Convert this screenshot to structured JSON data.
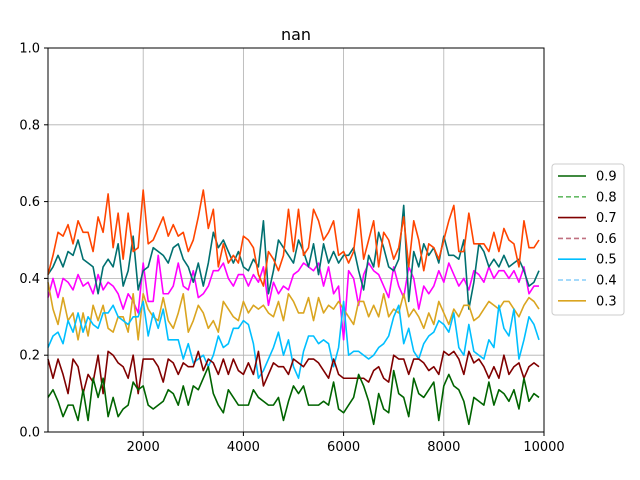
{
  "chart_data": {
    "type": "line",
    "title": "nan",
    "xlabel": "",
    "ylabel": "",
    "xlim": [
      100,
      10000
    ],
    "ylim": [
      0.0,
      1.0
    ],
    "x_ticks": [
      2000,
      4000,
      6000,
      8000,
      10000
    ],
    "x_tick_labels": [
      "2000",
      "4000",
      "6000",
      "8000",
      "10000"
    ],
    "y_ticks": [
      0.0,
      0.2,
      0.4,
      0.6,
      0.8,
      1.0
    ],
    "y_tick_labels": [
      "0.0",
      "0.2",
      "0.4",
      "0.6",
      "0.8",
      "1.0"
    ],
    "grid": true,
    "legend_placement": "center-right outside",
    "legend": [
      {
        "label": "0.9",
        "color": "#006400",
        "dashed": false
      },
      {
        "label": "0.8",
        "color": "#66bb66",
        "dashed": true
      },
      {
        "label": "0.7",
        "color": "#800000",
        "dashed": false
      },
      {
        "label": "0.6",
        "color": "#c07080",
        "dashed": true
      },
      {
        "label": "0.5",
        "color": "#00bfff",
        "dashed": false
      },
      {
        "label": "0.4",
        "color": "#87cefa",
        "dashed": true
      },
      {
        "label": "0.3",
        "color": "#daa520",
        "dashed": false
      }
    ],
    "x": [
      100,
      200,
      300,
      400,
      500,
      600,
      700,
      800,
      900,
      1000,
      1100,
      1200,
      1300,
      1400,
      1500,
      1600,
      1700,
      1800,
      1900,
      2000,
      2100,
      2200,
      2300,
      2400,
      2500,
      2600,
      2700,
      2800,
      2900,
      3000,
      3100,
      3200,
      3300,
      3400,
      3500,
      3600,
      3700,
      3800,
      3900,
      4000,
      4100,
      4200,
      4300,
      4400,
      4500,
      4600,
      4700,
      4800,
      4900,
      5000,
      5100,
      5200,
      5300,
      5400,
      5500,
      5600,
      5700,
      5800,
      5900,
      6000,
      6100,
      6200,
      6300,
      6400,
      6500,
      6600,
      6700,
      6800,
      6900,
      7000,
      7100,
      7200,
      7300,
      7400,
      7500,
      7600,
      7700,
      7800,
      7900,
      8000,
      8100,
      8200,
      8300,
      8400,
      8500,
      8600,
      8700,
      8800,
      8900,
      9000,
      9100,
      9200,
      9300,
      9400,
      9500,
      9600,
      9700,
      9800,
      9900
    ],
    "series": [
      {
        "name": "0.9",
        "color": "#006400",
        "values": [
          0.09,
          0.11,
          0.08,
          0.04,
          0.07,
          0.07,
          0.03,
          0.11,
          0.03,
          0.14,
          0.09,
          0.14,
          0.04,
          0.09,
          0.04,
          0.06,
          0.07,
          0.13,
          0.11,
          0.12,
          0.07,
          0.06,
          0.07,
          0.08,
          0.11,
          0.1,
          0.07,
          0.12,
          0.07,
          0.12,
          0.11,
          0.14,
          0.17,
          0.1,
          0.07,
          0.05,
          0.11,
          0.09,
          0.07,
          0.07,
          0.07,
          0.11,
          0.09,
          0.08,
          0.07,
          0.07,
          0.09,
          0.03,
          0.08,
          0.12,
          0.1,
          0.12,
          0.07,
          0.07,
          0.07,
          0.08,
          0.07,
          0.13,
          0.06,
          0.05,
          0.07,
          0.09,
          0.15,
          0.12,
          0.08,
          0.02,
          0.1,
          0.06,
          0.05,
          0.16,
          0.1,
          0.09,
          0.04,
          0.14,
          0.1,
          0.09,
          0.11,
          0.13,
          0.03,
          0.12,
          0.15,
          0.12,
          0.11,
          0.08,
          0.02,
          0.09,
          0.08,
          0.07,
          0.13,
          0.07,
          0.11,
          0.1,
          0.08,
          0.11,
          0.06,
          0.14,
          0.08,
          0.1,
          0.09
        ]
      },
      {
        "name": "0.7",
        "color": "#800000",
        "values": [
          0.19,
          0.14,
          0.19,
          0.15,
          0.1,
          0.19,
          0.17,
          0.1,
          0.15,
          0.13,
          0.2,
          0.1,
          0.21,
          0.2,
          0.18,
          0.17,
          0.14,
          0.2,
          0.1,
          0.19,
          0.19,
          0.19,
          0.17,
          0.13,
          0.19,
          0.18,
          0.15,
          0.18,
          0.17,
          0.17,
          0.21,
          0.16,
          0.19,
          0.18,
          0.15,
          0.19,
          0.15,
          0.19,
          0.16,
          0.15,
          0.18,
          0.15,
          0.21,
          0.12,
          0.15,
          0.18,
          0.17,
          0.17,
          0.15,
          0.19,
          0.18,
          0.17,
          0.19,
          0.19,
          0.18,
          0.16,
          0.14,
          0.19,
          0.15,
          0.14,
          0.14,
          0.14,
          0.14,
          0.14,
          0.13,
          0.16,
          0.17,
          0.14,
          0.13,
          0.2,
          0.19,
          0.19,
          0.15,
          0.19,
          0.19,
          0.18,
          0.16,
          0.17,
          0.15,
          0.21,
          0.2,
          0.21,
          0.19,
          0.15,
          0.21,
          0.18,
          0.19,
          0.17,
          0.14,
          0.17,
          0.14,
          0.2,
          0.15,
          0.17,
          0.18,
          0.14,
          0.17,
          0.18,
          0.17
        ]
      },
      {
        "name": "0.5",
        "color": "#00bfff",
        "values": [
          0.22,
          0.25,
          0.26,
          0.23,
          0.29,
          0.26,
          0.31,
          0.26,
          0.3,
          0.28,
          0.27,
          0.31,
          0.31,
          0.33,
          0.3,
          0.29,
          0.28,
          0.3,
          0.3,
          0.34,
          0.25,
          0.31,
          0.27,
          0.32,
          0.24,
          0.24,
          0.24,
          0.19,
          0.23,
          0.18,
          0.19,
          0.2,
          0.17,
          0.2,
          0.25,
          0.22,
          0.23,
          0.27,
          0.27,
          0.29,
          0.28,
          0.23,
          0.14,
          0.16,
          0.19,
          0.22,
          0.26,
          0.2,
          0.24,
          0.17,
          0.14,
          0.21,
          0.25,
          0.25,
          0.23,
          0.24,
          0.23,
          0.17,
          0.22,
          0.34,
          0.2,
          0.21,
          0.21,
          0.2,
          0.19,
          0.2,
          0.22,
          0.23,
          0.25,
          0.3,
          0.33,
          0.23,
          0.27,
          0.21,
          0.19,
          0.23,
          0.25,
          0.26,
          0.29,
          0.28,
          0.26,
          0.31,
          0.22,
          0.2,
          0.28,
          0.21,
          0.2,
          0.19,
          0.24,
          0.22,
          0.33,
          0.27,
          0.25,
          0.32,
          0.19,
          0.24,
          0.3,
          0.28,
          0.24
        ]
      },
      {
        "name": "0.3",
        "color": "#daa520",
        "values": [
          0.39,
          0.32,
          0.28,
          0.35,
          0.29,
          0.31,
          0.24,
          0.31,
          0.25,
          0.33,
          0.29,
          0.33,
          0.27,
          0.26,
          0.3,
          0.3,
          0.26,
          0.36,
          0.24,
          0.36,
          0.32,
          0.3,
          0.29,
          0.35,
          0.29,
          0.27,
          0.31,
          0.36,
          0.26,
          0.29,
          0.33,
          0.31,
          0.27,
          0.29,
          0.26,
          0.34,
          0.32,
          0.3,
          0.29,
          0.34,
          0.31,
          0.33,
          0.32,
          0.33,
          0.31,
          0.3,
          0.34,
          0.29,
          0.36,
          0.34,
          0.31,
          0.31,
          0.35,
          0.29,
          0.35,
          0.31,
          0.33,
          0.32,
          0.34,
          0.32,
          0.3,
          0.28,
          0.34,
          0.34,
          0.3,
          0.33,
          0.3,
          0.36,
          0.3,
          0.32,
          0.31,
          0.36,
          0.3,
          0.32,
          0.3,
          0.27,
          0.31,
          0.28,
          0.34,
          0.31,
          0.28,
          0.32,
          0.3,
          0.33,
          0.33,
          0.29,
          0.3,
          0.32,
          0.34,
          0.33,
          0.32,
          0.34,
          0.34,
          0.32,
          0.3,
          0.33,
          0.35,
          0.34,
          0.32
        ]
      },
      {
        "name": "",
        "color": "#ff00ff",
        "values": [
          0.35,
          0.4,
          0.35,
          0.4,
          0.39,
          0.37,
          0.41,
          0.38,
          0.39,
          0.36,
          0.41,
          0.37,
          0.39,
          0.38,
          0.36,
          0.32,
          0.36,
          0.34,
          0.31,
          0.44,
          0.34,
          0.34,
          0.46,
          0.36,
          0.36,
          0.38,
          0.44,
          0.38,
          0.37,
          0.42,
          0.35,
          0.36,
          0.38,
          0.42,
          0.42,
          0.44,
          0.4,
          0.38,
          0.41,
          0.41,
          0.38,
          0.41,
          0.39,
          0.43,
          0.33,
          0.39,
          0.36,
          0.38,
          0.37,
          0.41,
          0.42,
          0.44,
          0.43,
          0.42,
          0.44,
          0.38,
          0.43,
          0.36,
          0.38,
          0.24,
          0.42,
          0.4,
          0.33,
          0.41,
          0.44,
          0.42,
          0.41,
          0.38,
          0.35,
          0.43,
          0.38,
          0.35,
          0.43,
          0.4,
          0.32,
          0.38,
          0.36,
          0.38,
          0.42,
          0.39,
          0.44,
          0.41,
          0.38,
          0.4,
          0.37,
          0.42,
          0.41,
          0.39,
          0.43,
          0.4,
          0.42,
          0.42,
          0.4,
          0.42,
          0.39,
          0.43,
          0.36,
          0.38,
          0.38
        ]
      },
      {
        "name": "",
        "color": "#007070",
        "values": [
          0.41,
          0.43,
          0.46,
          0.43,
          0.47,
          0.46,
          0.5,
          0.45,
          0.44,
          0.43,
          0.36,
          0.43,
          0.45,
          0.43,
          0.49,
          0.38,
          0.42,
          0.51,
          0.37,
          0.42,
          0.43,
          0.48,
          0.47,
          0.46,
          0.44,
          0.48,
          0.49,
          0.45,
          0.43,
          0.39,
          0.44,
          0.38,
          0.44,
          0.52,
          0.48,
          0.5,
          0.47,
          0.44,
          0.47,
          0.43,
          0.42,
          0.45,
          0.43,
          0.55,
          0.36,
          0.42,
          0.5,
          0.48,
          0.46,
          0.44,
          0.5,
          0.47,
          0.43,
          0.49,
          0.41,
          0.49,
          0.44,
          0.47,
          0.44,
          0.46,
          0.46,
          0.48,
          0.42,
          0.37,
          0.46,
          0.43,
          0.52,
          0.48,
          0.43,
          0.42,
          0.45,
          0.59,
          0.34,
          0.47,
          0.43,
          0.49,
          0.46,
          0.48,
          0.44,
          0.51,
          0.46,
          0.46,
          0.45,
          0.5,
          0.32,
          0.39,
          0.49,
          0.47,
          0.43,
          0.45,
          0.43,
          0.46,
          0.43,
          0.44,
          0.45,
          0.42,
          0.38,
          0.39,
          0.42
        ]
      },
      {
        "name": "",
        "color": "#ff4500",
        "values": [
          0.41,
          0.46,
          0.52,
          0.51,
          0.54,
          0.49,
          0.55,
          0.52,
          0.52,
          0.47,
          0.56,
          0.52,
          0.62,
          0.48,
          0.57,
          0.45,
          0.57,
          0.47,
          0.48,
          0.63,
          0.49,
          0.5,
          0.53,
          0.56,
          0.51,
          0.54,
          0.51,
          0.52,
          0.47,
          0.5,
          0.56,
          0.63,
          0.53,
          0.58,
          0.43,
          0.49,
          0.44,
          0.46,
          0.44,
          0.51,
          0.5,
          0.48,
          0.41,
          0.38,
          0.47,
          0.45,
          0.42,
          0.46,
          0.58,
          0.47,
          0.58,
          0.46,
          0.48,
          0.58,
          0.55,
          0.5,
          0.52,
          0.55,
          0.46,
          0.47,
          0.44,
          0.47,
          0.58,
          0.45,
          0.5,
          0.55,
          0.43,
          0.52,
          0.5,
          0.45,
          0.48,
          0.56,
          0.43,
          0.55,
          0.5,
          0.42,
          0.49,
          0.48,
          0.45,
          0.5,
          0.55,
          0.59,
          0.47,
          0.47,
          0.57,
          0.49,
          0.49,
          0.49,
          0.47,
          0.52,
          0.47,
          0.53,
          0.5,
          0.49,
          0.43,
          0.55,
          0.48,
          0.48,
          0.5
        ]
      }
    ]
  }
}
